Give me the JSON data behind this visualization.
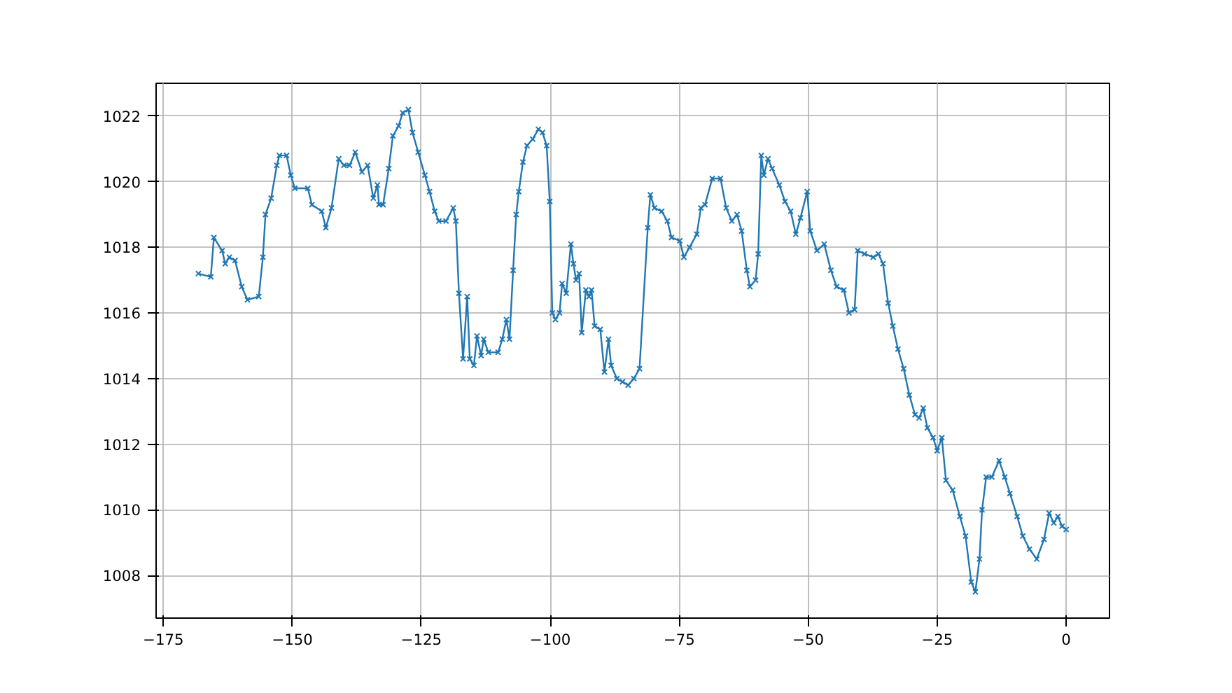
{
  "chart_data": {
    "type": "line",
    "marker": "cross",
    "line_style": "solid",
    "grid": true,
    "xlim": [
      -176.4,
      8.4
    ],
    "ylim": [
      1006.7,
      1023.0
    ],
    "xticks": [
      -175,
      -150,
      -125,
      -100,
      -75,
      -50,
      -25,
      0
    ],
    "yticks": [
      1008,
      1010,
      1012,
      1014,
      1016,
      1018,
      1020,
      1022
    ],
    "series": [
      {
        "color": "#1f77b4",
        "x": [
          -168.2,
          -165.8,
          -165.2,
          -163.6,
          -163,
          -162.2,
          -161.1,
          -159.8,
          -158.7,
          -156.5,
          -155.7,
          -155.2,
          -154.1,
          -153.0,
          -152.5,
          -151.1,
          -150.3,
          -149.5,
          -147,
          -146.2,
          -144.3,
          -143.5,
          -142.4,
          -141,
          -140,
          -138.9,
          -137.8,
          -136.5,
          -135.4,
          -134.3,
          -133.5,
          -133.2,
          -132.4,
          -131.3,
          -130.5,
          -129.4,
          -128.6,
          -127.5,
          -126.7,
          -125.6,
          -124.3,
          -123.4,
          -122.4,
          -121.6,
          -120.2,
          -118.8,
          -118.3,
          -117.7,
          -116.9,
          -116.1,
          -115.6,
          -114.8,
          -114.2,
          -113.4,
          -112.9,
          -112.0,
          -110.1,
          -109.3,
          -108.5,
          -107.9,
          -107.2,
          -106.6,
          -106.1,
          -105.3,
          -104.5,
          -103.4,
          -102.3,
          -101.5,
          -100.7,
          -100.1,
          -99.6,
          -99.0,
          -98.2,
          -97.7,
          -96.9,
          -96.0,
          -95.5,
          -95.0,
          -94.4,
          -93.9,
          -93.1,
          -92.5,
          -92.0,
          -91.4,
          -90.3,
          -89.5,
          -88.7,
          -88.2,
          -87.1,
          -86.0,
          -84.9,
          -83.8,
          -82.7,
          -81.1,
          -80.6,
          -79.8,
          -78.4,
          -77.3,
          -76.5,
          -74.9,
          -74.1,
          -73.0,
          -71.6,
          -70.8,
          -70.0,
          -68.6,
          -67.0,
          -65.9,
          -64.8,
          -63.8,
          -62.9,
          -61.9,
          -61.3,
          -60.2,
          -59.7,
          -59.1,
          -58.6,
          -57.8,
          -57.0,
          -55.6,
          -54.5,
          -53.4,
          -52.4,
          -51.5,
          -50.2,
          -49.6,
          -48.3,
          -46.9,
          -45.6,
          -44.5,
          -43.1,
          -42.1,
          -41.0,
          -40.4,
          -39.1,
          -37.4,
          -36.4,
          -35.5,
          -34.5,
          -33.6,
          -32.6,
          -31.5,
          -30.4,
          -29.3,
          -28.5,
          -27.7,
          -26.9,
          -25.8,
          -25.0,
          -24.1,
          -23.3,
          -22.0,
          -20.6,
          -19.5,
          -18.4,
          -17.6,
          -16.8,
          -16.3,
          -15.5,
          -14.4,
          -13.0,
          -11.9,
          -10.9,
          -9.5,
          -8.4,
          -7.1,
          -5.7,
          -4.3,
          -3.3,
          -2.4,
          -1.6,
          -0.8,
          0
        ],
        "values": [
          1017.2,
          1017.1,
          1018.3,
          1017.9,
          1017.5,
          1017.7,
          1017.6,
          1016.8,
          1016.4,
          1016.5,
          1017.7,
          1019.0,
          1019.5,
          1020.5,
          1020.8,
          1020.8,
          1020.2,
          1019.8,
          1019.8,
          1019.3,
          1019.1,
          1018.6,
          1019.2,
          1020.7,
          1020.5,
          1020.5,
          1020.9,
          1020.3,
          1020.5,
          1019.5,
          1019.9,
          1019.3,
          1019.3,
          1020.4,
          1021.4,
          1021.7,
          1022.1,
          1022.2,
          1021.5,
          1020.9,
          1020.2,
          1019.7,
          1019.1,
          1018.8,
          1018.8,
          1019.2,
          1018.8,
          1016.6,
          1014.6,
          1016.5,
          1014.6,
          1014.4,
          1015.3,
          1014.7,
          1015.2,
          1014.8,
          1014.8,
          1015.2,
          1015.8,
          1015.2,
          1017.3,
          1019.0,
          1019.7,
          1020.6,
          1021.1,
          1021.3,
          1021.6,
          1021.5,
          1021.1,
          1019.4,
          1016.0,
          1015.8,
          1016.0,
          1016.9,
          1016.6,
          1018.1,
          1017.5,
          1017.0,
          1017.2,
          1015.4,
          1016.7,
          1016.5,
          1016.7,
          1015.6,
          1015.5,
          1014.2,
          1015.2,
          1014.4,
          1014.0,
          1013.9,
          1013.8,
          1014.0,
          1014.3,
          1018.6,
          1019.6,
          1019.2,
          1019.1,
          1018.8,
          1018.3,
          1018.2,
          1017.7,
          1018.0,
          1018.4,
          1019.2,
          1019.3,
          1020.1,
          1020.1,
          1019.2,
          1018.8,
          1019.0,
          1018.5,
          1017.3,
          1016.8,
          1017.0,
          1017.8,
          1020.8,
          1020.2,
          1020.7,
          1020.4,
          1019.9,
          1019.4,
          1019.1,
          1018.4,
          1018.9,
          1019.7,
          1018.5,
          1017.9,
          1018.1,
          1017.3,
          1016.8,
          1016.7,
          1016.0,
          1016.1,
          1017.9,
          1017.8,
          1017.7,
          1017.8,
          1017.5,
          1016.3,
          1015.6,
          1014.9,
          1014.3,
          1013.5,
          1012.9,
          1012.8,
          1013.1,
          1012.5,
          1012.2,
          1011.8,
          1012.2,
          1010.9,
          1010.6,
          1009.8,
          1009.2,
          1007.8,
          1007.5,
          1008.5,
          1010.0,
          1011.0,
          1011.0,
          1011.5,
          1011.0,
          1010.5,
          1009.8,
          1009.2,
          1008.8,
          1008.5,
          1009.1,
          1009.9,
          1009.6,
          1009.8,
          1009.5,
          1009.4
        ]
      }
    ]
  }
}
